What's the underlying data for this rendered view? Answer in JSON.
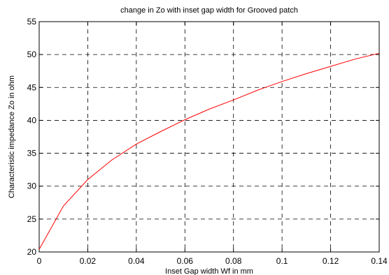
{
  "chart_data": {
    "type": "line",
    "title": "change in Zo with inset gap width for Grooved patch",
    "xlabel": "Inset Gap width Wf in mm",
    "ylabel": "Characteristic impedance Zo in ohm",
    "xlim": [
      0,
      0.14
    ],
    "ylim": [
      20,
      55
    ],
    "grid": true,
    "x_ticks": [
      "0",
      "0.02",
      "0.04",
      "0.06",
      "0.08",
      "0.1",
      "0.12",
      "0.14"
    ],
    "y_ticks": [
      "20",
      "25",
      "30",
      "35",
      "40",
      "45",
      "50",
      "55"
    ],
    "series": [
      {
        "color": "#ff0000",
        "x": [
          0,
          0.01,
          0.02,
          0.03,
          0.04,
          0.05,
          0.06,
          0.07,
          0.08,
          0.09,
          0.1,
          0.11,
          0.12,
          0.13,
          0.14
        ],
        "y": [
          20.4,
          27.0,
          31.0,
          34.0,
          36.4,
          38.3,
          40.1,
          41.7,
          43.1,
          44.6,
          45.9,
          47.1,
          48.2,
          49.3,
          50.2
        ]
      }
    ]
  }
}
